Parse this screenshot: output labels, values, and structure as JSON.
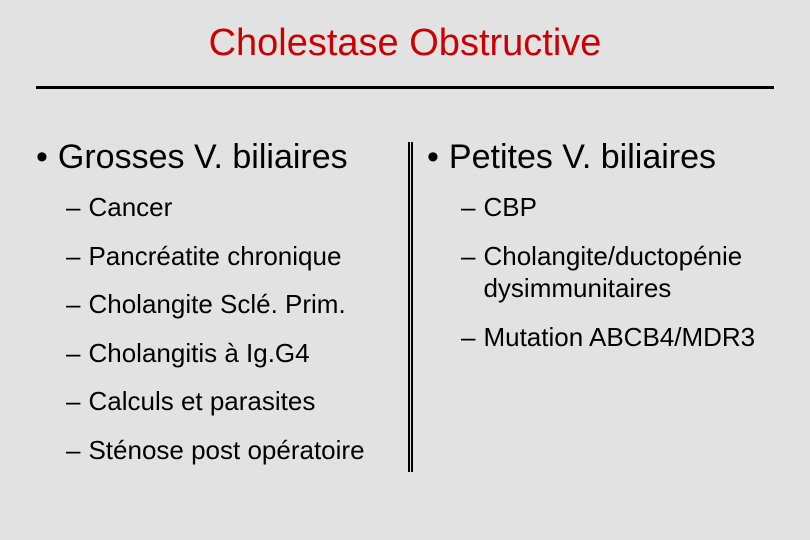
{
  "title": "Cholestase Obstructive",
  "title_color": "#cc0000",
  "background_color": "#e2e2e2",
  "hr_color": "#000000",
  "divider_color": "#000000",
  "text_color": "#000000",
  "font_family": "Arial",
  "title_fontsize": 38,
  "heading_fontsize": 34,
  "sub_fontsize": 26,
  "left": {
    "heading": "Grosses V. biliaires",
    "items": [
      "Cancer",
      "Pancréatite chronique",
      "Cholangite Sclé. Prim.",
      "Cholangitis à Ig.G4",
      "Calculs et parasites",
      "Sténose post opératoire"
    ]
  },
  "right": {
    "heading": "Petites V. biliaires",
    "items": [
      "CBP",
      "Cholangite/ductopénie dysimmunitaires",
      "Mutation ABCB4/MDR3"
    ]
  }
}
